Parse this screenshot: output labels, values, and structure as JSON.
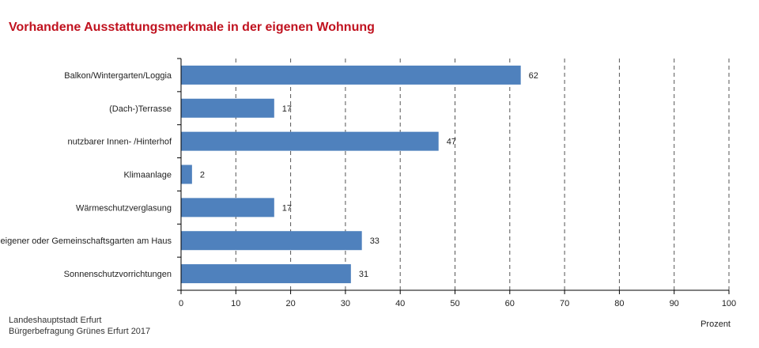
{
  "chart_data": {
    "type": "bar",
    "orientation": "horizontal",
    "title": "Vorhandene Ausstattungsmerkmale in der eigenen Wohnung",
    "xlabel": "Prozent",
    "ylabel": "",
    "categories": [
      "Balkon/Wintergarten/Loggia",
      "(Dach-)Terrasse",
      "nutzbarer Innen- /Hinterhof",
      "Klimaanlage",
      "Wärmeschutzverglasung",
      "eigener oder Gemeinschaftsgarten am Haus",
      "Sonnenschutzvorrichtungen"
    ],
    "values": [
      62,
      17,
      47,
      2,
      17,
      33,
      31
    ],
    "xlim": [
      0,
      100
    ],
    "xticks": [
      0,
      10,
      20,
      30,
      40,
      50,
      60,
      70,
      80,
      90,
      100
    ],
    "grid": "vertical dashed",
    "legend": "none",
    "bar_color": "#4f81bd",
    "title_color": "#c0121f"
  },
  "source": {
    "line1": "Landeshauptstadt Erfurt",
    "line2": "Bürgerbefragung Grünes Erfurt 2017"
  }
}
